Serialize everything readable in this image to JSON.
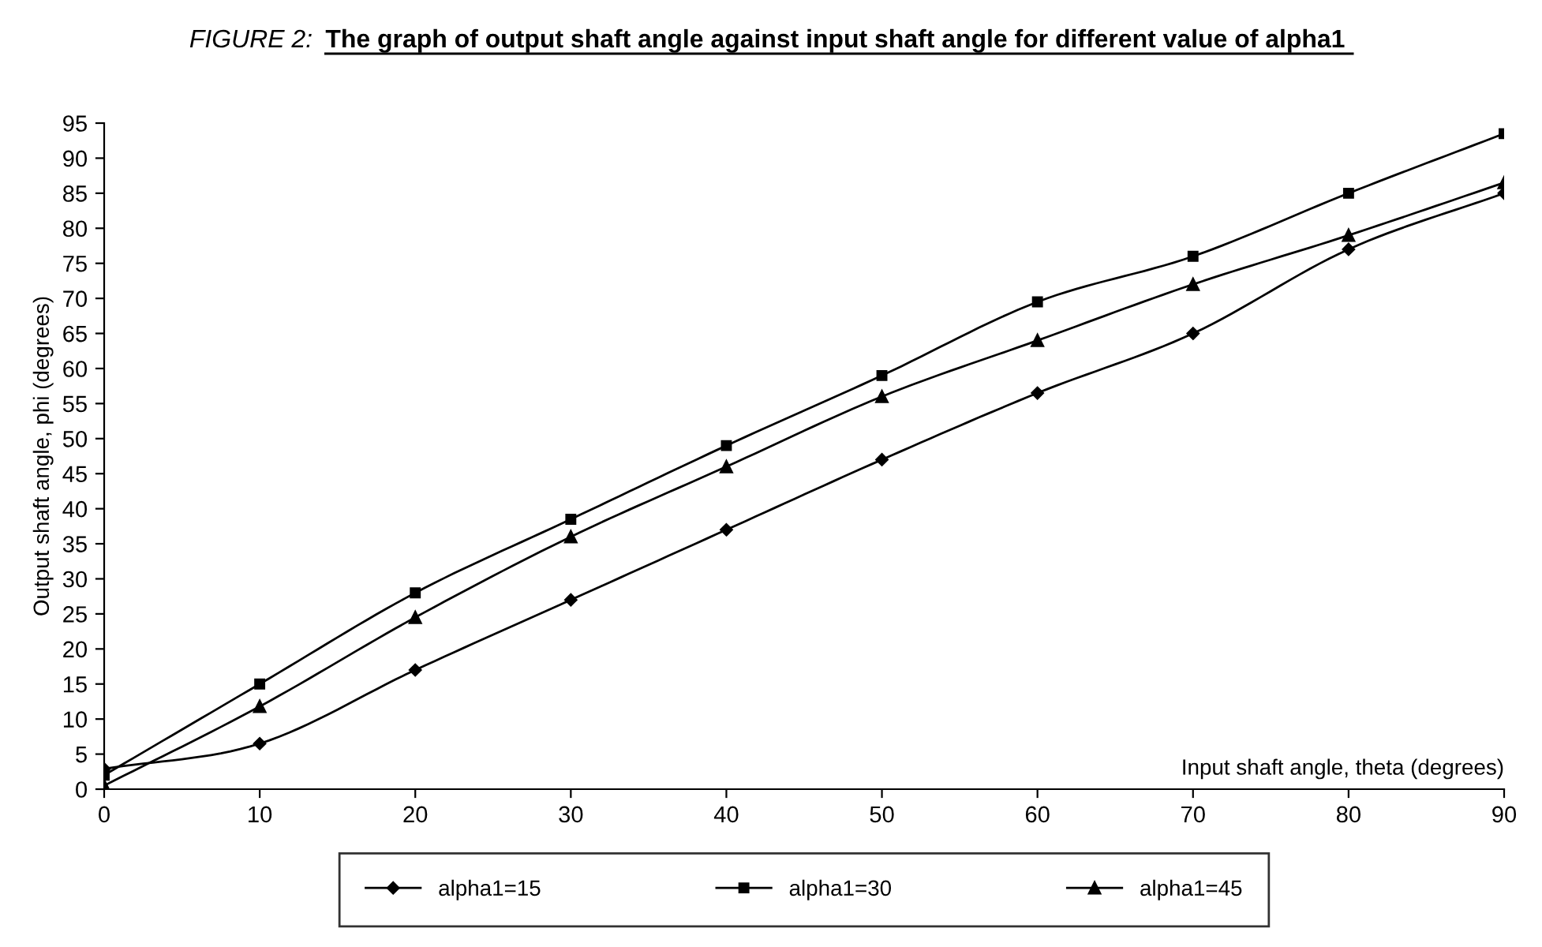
{
  "chart_data": {
    "type": "line",
    "title": "FIGURE 2:  The graph of output shaft angle against input shaft angle for different value of alpha1",
    "xlabel": "Input shaft angle, theta (degrees)",
    "ylabel": "Output shaft angle, phi (degrees)",
    "x": [
      0,
      10,
      20,
      30,
      40,
      50,
      60,
      70,
      80,
      90
    ],
    "series": [
      {
        "name": "alpha1=15",
        "color": "#000000",
        "marker": "diamond",
        "values": [
          2.9,
          6.5,
          17,
          27,
          37,
          47,
          56.5,
          65,
          77,
          85
        ]
      },
      {
        "name": "alpha1=30",
        "color": "#000000",
        "marker": "square",
        "values": [
          2,
          15,
          28,
          38.5,
          49,
          59,
          69.5,
          76,
          85,
          93.5
        ]
      },
      {
        "name": "alpha1=45",
        "color": "#000000",
        "marker": "triangle",
        "values": [
          0.5,
          11.8,
          24.5,
          36,
          46,
          56,
          64,
          72,
          79,
          86.5
        ]
      }
    ],
    "xlim": [
      0,
      90
    ],
    "xticks": [
      0,
      10,
      20,
      30,
      40,
      50,
      60,
      70,
      80,
      90
    ],
    "ylim": [
      0,
      95
    ],
    "yticks": [
      0,
      5,
      10,
      15,
      20,
      25,
      30,
      35,
      40,
      45,
      50,
      55,
      60,
      65,
      70,
      75,
      80,
      85,
      90,
      95
    ],
    "grid": false,
    "legend": "bottom",
    "line_style": "solid"
  }
}
